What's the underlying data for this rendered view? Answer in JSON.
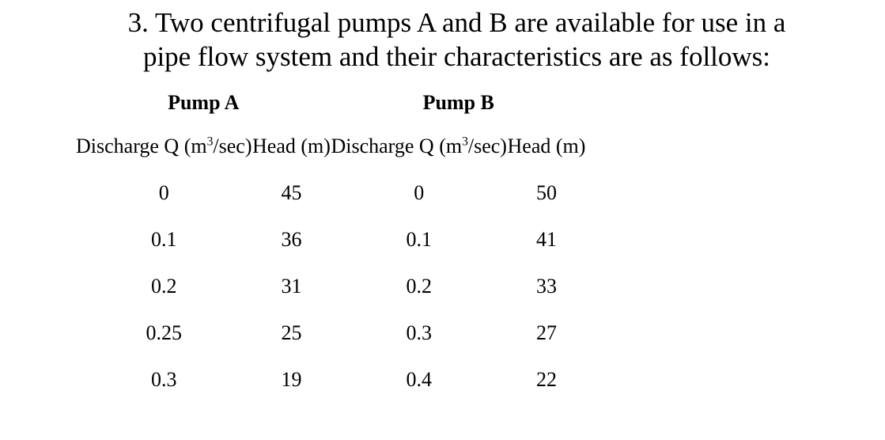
{
  "page": {
    "background_color": "#ffffff",
    "text_color": "#000000"
  },
  "problem": {
    "title_line1": "3. Two centrifugal pumps A and B are available for use in a",
    "title_line2": "pipe flow system and their characteristics are as follows:"
  },
  "table": {
    "group_headers": [
      {
        "label": "Pump A"
      },
      {
        "label": "Pump B"
      }
    ],
    "column_headers": [
      {
        "pre": "Discharge Q (m",
        "sup": "3",
        "post": "/sec)"
      },
      {
        "pre": "Head (m)",
        "sup": "",
        "post": ""
      },
      {
        "pre": "Discharge Q (m",
        "sup": "3",
        "post": "/sec)"
      },
      {
        "pre": "Head (m)",
        "sup": "",
        "post": ""
      }
    ],
    "rows": [
      [
        "0",
        "45",
        "0",
        "50"
      ],
      [
        "0.1",
        "36",
        "0.1",
        "41"
      ],
      [
        "0.2",
        "31",
        "0.2",
        "33"
      ],
      [
        "0.25",
        "25",
        "0.3",
        "27"
      ],
      [
        "0.3",
        "19",
        "0.4",
        "22"
      ]
    ]
  }
}
